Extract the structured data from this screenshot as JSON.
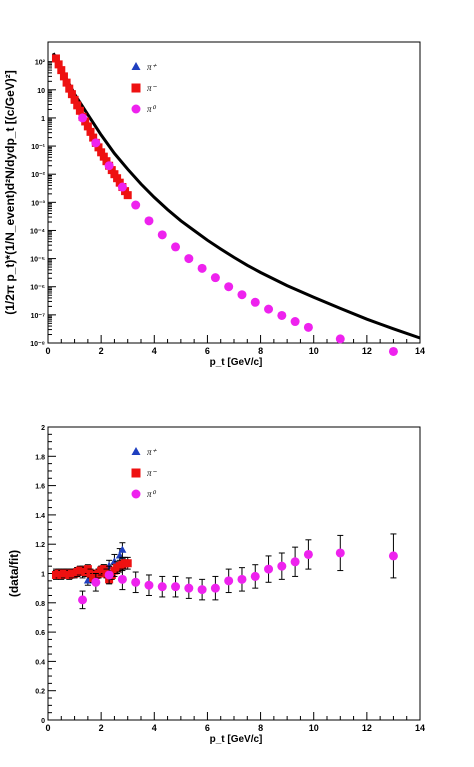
{
  "chart_data": [
    {
      "type": "scatter",
      "xlabel": "p_t [GeV/c]",
      "ylabel": "(1/2π p_t)*(1/N_event)d²N/dydp_t [(c/GeV)²]",
      "xlim": [
        0,
        14
      ],
      "ylim": [
        1e-08,
        500
      ],
      "yscale": "log",
      "x_ticks": [
        0,
        2,
        4,
        6,
        8,
        10,
        12,
        14
      ],
      "y_ticks": [
        "10²",
        "10",
        "1",
        "10⁻¹",
        "10⁻²",
        "10⁻³",
        "10⁻⁴",
        "10⁻⁵",
        "10⁻⁶",
        "10⁻⁷",
        "10⁻⁸"
      ],
      "legend_position": "top-center",
      "legend": [
        "π⁺",
        "π⁻",
        "π⁰"
      ],
      "fit": {
        "name": "fit",
        "color": "#000000",
        "x": [
          0.2,
          0.5,
          1,
          1.5,
          2,
          2.5,
          3,
          3.5,
          4,
          4.5,
          5,
          5.5,
          6,
          6.5,
          7,
          7.5,
          8,
          9,
          10,
          11,
          12,
          13,
          14
        ],
        "y": [
          200,
          55,
          7,
          1.3,
          0.25,
          0.055,
          0.015,
          0.0045,
          0.0015,
          0.00055,
          0.00022,
          0.0001,
          4.5e-05,
          2.2e-05,
          1.1e-05,
          5.8e-06,
          3.2e-06,
          1.1e-06,
          4.2e-07,
          1.7e-07,
          7e-08,
          3.2e-08,
          1.5e-08
        ]
      },
      "series": [
        {
          "name": "π⁺",
          "marker": "triangle",
          "color": "#1f3fbf",
          "x": [
            0.3,
            0.5,
            0.7,
            0.9,
            1.1,
            1.3,
            1.5,
            1.7,
            1.9,
            2.1,
            2.3,
            2.5,
            2.7,
            2.9
          ],
          "y": [
            130,
            50,
            18,
            7,
            2.8,
            1.1,
            0.5,
            0.2,
            0.09,
            0.042,
            0.02,
            0.01,
            0.005,
            0.0025
          ]
        },
        {
          "name": "π⁻",
          "marker": "square",
          "color": "#ee1111",
          "x": [
            0.3,
            0.4,
            0.5,
            0.6,
            0.7,
            0.8,
            0.9,
            1.0,
            1.1,
            1.2,
            1.3,
            1.4,
            1.5,
            1.6,
            1.7,
            1.8,
            1.9,
            2.0,
            2.1,
            2.2,
            2.3,
            2.4,
            2.5,
            2.6,
            2.7,
            2.8,
            2.9,
            3.0
          ],
          "y": [
            130,
            80,
            50,
            30,
            18,
            11,
            7,
            4.4,
            2.8,
            1.8,
            1.1,
            0.75,
            0.5,
            0.32,
            0.2,
            0.13,
            0.09,
            0.06,
            0.042,
            0.029,
            0.02,
            0.014,
            0.01,
            0.0072,
            0.005,
            0.0035,
            0.0025,
            0.0018
          ]
        },
        {
          "name": "π⁰",
          "marker": "circle",
          "color": "#ee22ee",
          "x": [
            1.3,
            1.8,
            2.3,
            2.8,
            3.3,
            3.8,
            4.3,
            4.8,
            5.3,
            5.8,
            6.3,
            6.8,
            7.3,
            7.8,
            8.3,
            8.8,
            9.3,
            9.8,
            11.0,
            13.0
          ],
          "y": [
            1.0,
            0.13,
            0.02,
            0.0035,
            0.0008,
            0.00022,
            7e-05,
            2.6e-05,
            1e-05,
            4.5e-06,
            2.1e-06,
            1e-06,
            5.2e-07,
            2.8e-07,
            1.6e-07,
            9.5e-08,
            5.8e-08,
            3.6e-08,
            1.4e-08,
            5e-09
          ]
        }
      ]
    },
    {
      "type": "scatter",
      "xlabel": "p_t [GeV/c]",
      "ylabel": "(data/fit)",
      "xlim": [
        0,
        14
      ],
      "ylim": [
        0,
        2
      ],
      "x_ticks": [
        0,
        2,
        4,
        6,
        8,
        10,
        12,
        14
      ],
      "y_ticks": [
        0,
        0.2,
        0.4,
        0.6,
        0.8,
        1,
        1.2,
        1.4,
        1.6,
        1.8,
        2
      ],
      "legend_position": "top-center",
      "legend": [
        "π⁺",
        "π⁻",
        "π⁰"
      ],
      "series": [
        {
          "name": "π⁺",
          "marker": "triangle",
          "color": "#1f3fbf",
          "x": [
            0.3,
            0.5,
            0.7,
            0.9,
            1.1,
            1.3,
            1.5,
            1.7,
            1.9,
            2.1,
            2.3,
            2.5,
            2.7,
            2.8
          ],
          "y": [
            1.0,
            1.0,
            1.0,
            1.0,
            1.01,
            1.0,
            0.95,
            0.97,
            1.0,
            1.02,
            1.05,
            1.08,
            1.12,
            1.16
          ],
          "err": [
            0.03,
            0.03,
            0.03,
            0.03,
            0.03,
            0.03,
            0.03,
            0.03,
            0.03,
            0.04,
            0.04,
            0.05,
            0.05,
            0.05
          ]
        },
        {
          "name": "π⁻",
          "marker": "square",
          "color": "#ee1111",
          "x": [
            0.3,
            0.4,
            0.5,
            0.6,
            0.7,
            0.8,
            0.9,
            1.0,
            1.1,
            1.2,
            1.3,
            1.4,
            1.5,
            1.6,
            1.7,
            1.8,
            1.9,
            2.0,
            2.1,
            2.2,
            2.3,
            2.4,
            2.5,
            2.6,
            2.7,
            2.8,
            2.9,
            3.0
          ],
          "y": [
            0.99,
            1.0,
            0.99,
            1.0,
            1.0,
            0.99,
            1.0,
            1.0,
            1.01,
            1.02,
            1.02,
            1.01,
            1.03,
            1.0,
            0.97,
            0.99,
            1.0,
            1.02,
            1.03,
            1.0,
            0.96,
            0.99,
            1.02,
            1.04,
            1.05,
            1.06,
            1.07,
            1.07
          ],
          "err": [
            0.03,
            0.03,
            0.03,
            0.03,
            0.03,
            0.03,
            0.03,
            0.03,
            0.03,
            0.03,
            0.03,
            0.03,
            0.03,
            0.03,
            0.03,
            0.03,
            0.03,
            0.03,
            0.03,
            0.03,
            0.03,
            0.03,
            0.04,
            0.04,
            0.04,
            0.04,
            0.04,
            0.04
          ]
        },
        {
          "name": "π⁰",
          "marker": "circle",
          "color": "#ee22ee",
          "x": [
            1.3,
            1.8,
            2.3,
            2.8,
            3.3,
            3.8,
            4.3,
            4.8,
            5.3,
            5.8,
            6.3,
            6.8,
            7.3,
            7.8,
            8.3,
            8.8,
            9.3,
            9.8,
            11.0,
            13.0
          ],
          "y": [
            0.82,
            0.94,
            0.99,
            0.96,
            0.94,
            0.92,
            0.91,
            0.91,
            0.9,
            0.89,
            0.9,
            0.95,
            0.96,
            0.98,
            1.03,
            1.05,
            1.08,
            1.13,
            1.14,
            1.12
          ],
          "err": [
            0.06,
            0.06,
            0.06,
            0.07,
            0.07,
            0.07,
            0.07,
            0.07,
            0.07,
            0.07,
            0.08,
            0.08,
            0.08,
            0.08,
            0.09,
            0.09,
            0.1,
            0.1,
            0.12,
            0.15
          ]
        }
      ]
    }
  ]
}
